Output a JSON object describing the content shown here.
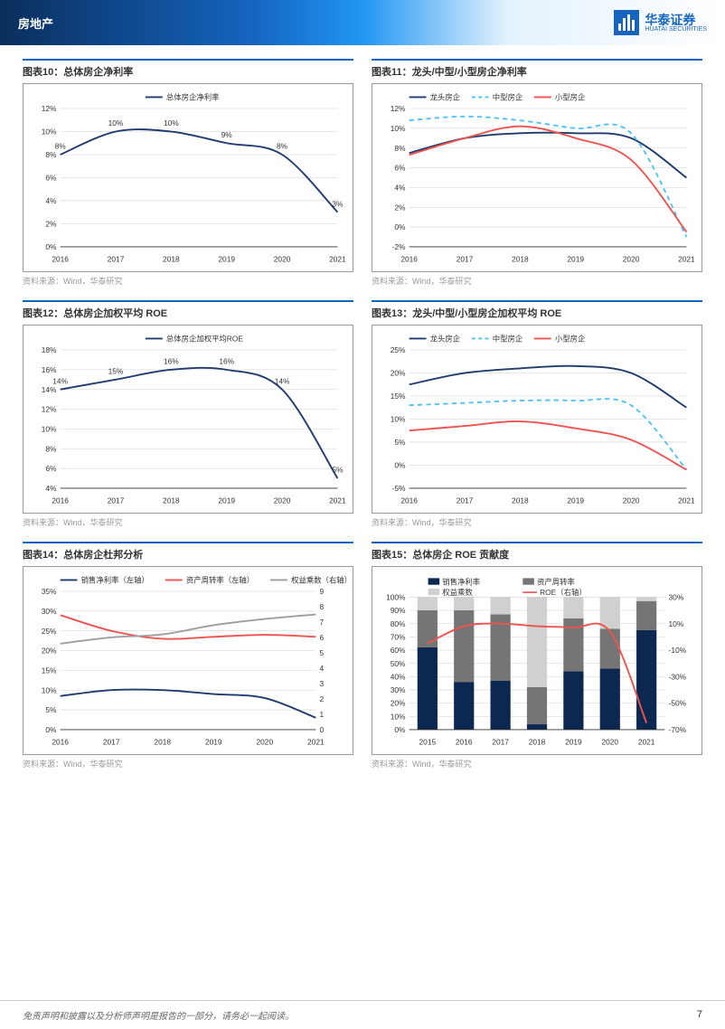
{
  "header": {
    "category": "房地产",
    "company": "华泰证券",
    "company_en": "HUATAI SECURITIES"
  },
  "footer": {
    "disclaimer": "免责声明和披露以及分析师声明是报告的一部分，请务必一起阅读。",
    "page": "7"
  },
  "source_text": "资料来源：Wind，华泰研究",
  "colors": {
    "navy": "#1f3a6e",
    "cyan": "#4fc3f7",
    "red": "#ef5350",
    "gray": "#9e9e9e",
    "grid": "#d0d0d0",
    "axis": "#666",
    "dark_navy": "#0d2850"
  },
  "chart10": {
    "title": "图表10：总体房企净利率",
    "legend": [
      "总体房企净利率"
    ],
    "categories": [
      "2016",
      "2017",
      "2018",
      "2019",
      "2020",
      "2021"
    ],
    "values": [
      8,
      10,
      10,
      9,
      8,
      3
    ],
    "ylim": [
      0,
      12
    ],
    "ytick_step": 2,
    "y_suffix": "%",
    "point_labels": [
      "8%",
      "10%",
      "10%",
      "9%",
      "8%",
      "3%"
    ]
  },
  "chart11": {
    "title": "图表11：龙头/中型/小型房企净利率",
    "legend": [
      "龙头房企",
      "中型房企",
      "小型房企"
    ],
    "categories": [
      "2016",
      "2017",
      "2018",
      "2019",
      "2020",
      "2021"
    ],
    "s1": [
      7.5,
      9,
      9.5,
      9.5,
      9,
      5
    ],
    "s2": [
      10.8,
      11.2,
      10.8,
      10,
      9.5,
      -1
    ],
    "s3": [
      7.3,
      9,
      10.2,
      9,
      6.8,
      -0.5
    ],
    "ylim": [
      -2,
      12
    ],
    "ytick_step": 2,
    "y_suffix": "%"
  },
  "chart12": {
    "title": "图表12：总体房企加权平均 ROE",
    "legend": [
      "总体房企加权平均ROE"
    ],
    "categories": [
      "2016",
      "2017",
      "2018",
      "2019",
      "2020",
      "2021"
    ],
    "values": [
      14,
      15,
      16,
      16,
      14,
      5
    ],
    "ylim": [
      4,
      18
    ],
    "ytick_step": 2,
    "y_suffix": "%",
    "point_labels": [
      "14%",
      "15%",
      "16%",
      "16%",
      "14%",
      "5%"
    ]
  },
  "chart13": {
    "title": "图表13：龙头/中型/小型房企加权平均 ROE",
    "legend": [
      "龙头房企",
      "中型房企",
      "小型房企"
    ],
    "categories": [
      "2016",
      "2017",
      "2018",
      "2019",
      "2020",
      "2021"
    ],
    "s1": [
      17.5,
      20,
      21,
      21.5,
      20,
      12.5
    ],
    "s2": [
      13,
      13.5,
      14,
      14,
      13,
      -1
    ],
    "s3": [
      7.5,
      8.5,
      9.5,
      8,
      5.5,
      -1
    ],
    "ylim": [
      -5,
      25
    ],
    "ytick_step": 5,
    "y_suffix": "%"
  },
  "chart14": {
    "title": "图表14：总体房企杜邦分析",
    "legend": [
      "销售净利率（左轴）",
      "资产周转率（左轴）",
      "权益乘数（右轴）"
    ],
    "categories": [
      "2016",
      "2017",
      "2018",
      "2019",
      "2020",
      "2021"
    ],
    "s1": [
      8.5,
      10,
      10,
      9,
      8,
      3
    ],
    "s2": [
      29,
      25,
      23,
      23.5,
      24,
      23.5
    ],
    "s3": [
      5.6,
      6,
      6.2,
      6.8,
      7.2,
      7.5
    ],
    "ylim_l": [
      0,
      35
    ],
    "ytick_l": 5,
    "yl_suffix": "%",
    "ylim_r": [
      0,
      9
    ],
    "ytick_r": 1
  },
  "chart15": {
    "title": "图表15：总体房企 ROE 贡献度",
    "legend": [
      "销售净利率",
      "资产周转率",
      "权益乘数",
      "ROE（右轴）"
    ],
    "categories": [
      "2015",
      "2016",
      "2017",
      "2018",
      "2019",
      "2020",
      "2021"
    ],
    "bar1": [
      62,
      36,
      37,
      4,
      44,
      46,
      75
    ],
    "bar2": [
      28,
      54,
      50,
      28,
      40,
      30,
      22
    ],
    "bar3": [
      10,
      10,
      13,
      68,
      16,
      24,
      3
    ],
    "line": [
      -5,
      8,
      10,
      8,
      7,
      4,
      -65
    ],
    "ylim_l": [
      0,
      100
    ],
    "ytick_l": 10,
    "yl_suffix": "%",
    "ylim_r": [
      -70,
      30
    ],
    "ytick_r": 20,
    "yr_suffix": "%"
  }
}
